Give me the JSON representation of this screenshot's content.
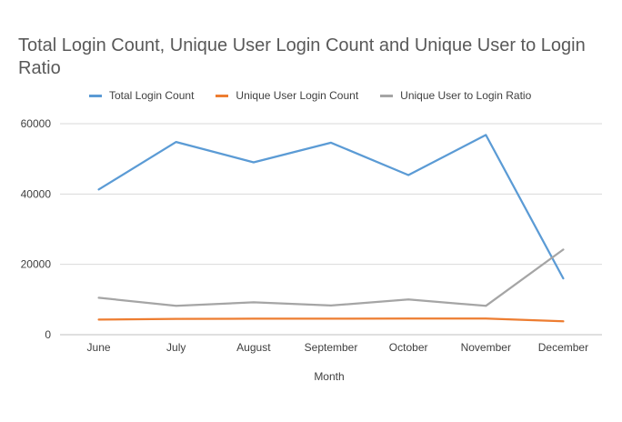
{
  "chart_data": {
    "type": "line",
    "title": "Total Login Count, Unique User Login Count and Unique User to Login Ratio",
    "xlabel": "Month",
    "ylabel": "",
    "categories": [
      "June",
      "July",
      "August",
      "September",
      "October",
      "November",
      "December"
    ],
    "ylim": [
      0,
      60000
    ],
    "yticks": [
      0,
      20000,
      40000,
      60000
    ],
    "grid": true,
    "legend_position": "top",
    "series": [
      {
        "name": "Total Login Count",
        "color": "#5B9BD5",
        "values": [
          41300,
          54800,
          49000,
          54600,
          45400,
          56800,
          16000
        ]
      },
      {
        "name": "Unique User Login Count",
        "color": "#ED7D31",
        "values": [
          4300,
          4500,
          4550,
          4550,
          4600,
          4600,
          3800
        ]
      },
      {
        "name": "Unique User to Login Ratio",
        "color": "#A5A5A5",
        "values": [
          10500,
          8200,
          9200,
          8300,
          10000,
          8200,
          24200
        ]
      }
    ]
  }
}
